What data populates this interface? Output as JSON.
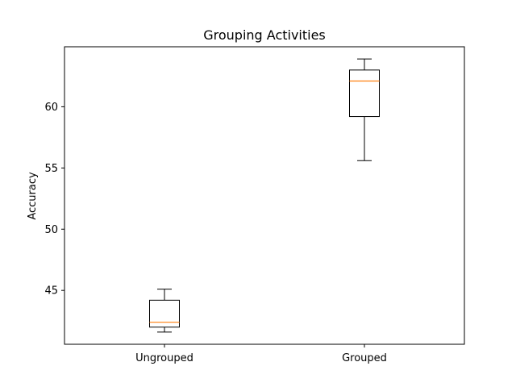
{
  "chart_data": {
    "type": "boxplot",
    "title": "Grouping Activities",
    "xlabel": "",
    "ylabel": "Accuracy",
    "categories": [
      "Ungrouped",
      "Grouped"
    ],
    "boxes": [
      {
        "category": "Ungrouped",
        "whisker_low": 41.6,
        "q1": 42.0,
        "median": 42.4,
        "q3": 44.2,
        "whisker_high": 45.1
      },
      {
        "category": "Grouped",
        "whisker_low": 55.6,
        "q1": 59.2,
        "median": 62.1,
        "q3": 63.0,
        "whisker_high": 63.9
      }
    ],
    "ylim": [
      40.6,
      64.9
    ],
    "yticks": [
      45,
      50,
      55,
      60
    ],
    "ytick_labels": [
      "45",
      "50",
      "55",
      "60"
    ],
    "grid": false,
    "colors": {
      "box": "#000000",
      "median": "#ff7f0e",
      "whisker": "#000000"
    }
  }
}
